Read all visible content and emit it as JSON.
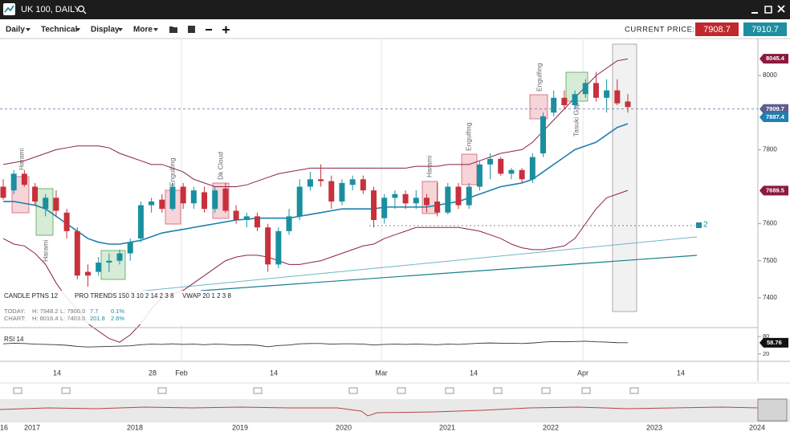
{
  "header": {
    "title": "UK 100, DAILY"
  },
  "toolbar": {
    "menus": [
      "Daily",
      "Technical",
      "Display",
      "More"
    ],
    "current_price_label": "CURRENT PRICE:",
    "bid": "7908.7",
    "ask": "7910.7"
  },
  "patterns": [
    "Harami",
    "Harami",
    "Engulfing",
    "Dk Cloud",
    "Harami",
    "Engulfing",
    "Engulfing",
    "Tasuki Gap"
  ],
  "drawing_label": "2",
  "legend": {
    "indicators": [
      "CANDLE PTNS 12",
      "PRO TRENDS 150 3 10 2 14 2 3 8",
      "VWAP 20 1 2 3 8"
    ],
    "today": [
      "TODAY:",
      "H: 7948.2",
      "L: 7900.0",
      "7.7",
      "0.1%"
    ],
    "chart": [
      "CHART:",
      "H: 8016.4",
      "L: 7403.0",
      "201.8",
      "2.6%"
    ]
  },
  "time_axis": [
    "14",
    "28",
    "Feb",
    "14",
    "Mar",
    "14",
    "Apr",
    "14"
  ],
  "navigator_years": [
    "16",
    "2017",
    "2018",
    "2019",
    "2020",
    "2021",
    "2022",
    "2023",
    "2024"
  ],
  "chart_data": {
    "type": "candlestick",
    "up_color": "#1a8fa0",
    "down_color": "#c8303c",
    "ylim": [
      7326,
      8100
    ],
    "yticks": [
      7400,
      7500,
      7600,
      7800,
      8000
    ],
    "candles": [
      [
        7700,
        7720,
        7665,
        7670
      ],
      [
        7690,
        7745,
        7680,
        7735
      ],
      [
        7735,
        7745,
        7700,
        7705
      ],
      [
        7700,
        7710,
        7650,
        7660
      ],
      [
        7640,
        7680,
        7620,
        7670
      ],
      [
        7670,
        7690,
        7620,
        7635
      ],
      [
        7630,
        7640,
        7560,
        7580
      ],
      [
        7580,
        7590,
        7450,
        7460
      ],
      [
        7470,
        7490,
        7430,
        7460
      ],
      [
        7470,
        7510,
        7460,
        7495
      ],
      [
        7495,
        7520,
        7470,
        7500
      ],
      [
        7500,
        7530,
        7490,
        7520
      ],
      [
        7520,
        7560,
        7500,
        7550
      ],
      [
        7560,
        7660,
        7550,
        7650
      ],
      [
        7650,
        7670,
        7630,
        7660
      ],
      [
        7665,
        7680,
        7630,
        7640
      ],
      [
        7640,
        7710,
        7635,
        7700
      ],
      [
        7700,
        7710,
        7640,
        7655
      ],
      [
        7655,
        7700,
        7640,
        7690
      ],
      [
        7685,
        7700,
        7630,
        7640
      ],
      [
        7640,
        7700,
        7630,
        7690
      ],
      [
        7695,
        7710,
        7630,
        7635
      ],
      [
        7635,
        7650,
        7600,
        7610
      ],
      [
        7610,
        7630,
        7590,
        7620
      ],
      [
        7620,
        7630,
        7580,
        7590
      ],
      [
        7590,
        7600,
        7470,
        7490
      ],
      [
        7490,
        7590,
        7480,
        7580
      ],
      [
        7580,
        7640,
        7570,
        7620
      ],
      [
        7620,
        7720,
        7610,
        7700
      ],
      [
        7700,
        7740,
        7690,
        7720
      ],
      [
        7720,
        7760,
        7700,
        7715
      ],
      [
        7715,
        7730,
        7640,
        7660
      ],
      [
        7660,
        7720,
        7650,
        7710
      ],
      [
        7705,
        7730,
        7690,
        7720
      ],
      [
        7720,
        7730,
        7680,
        7690
      ],
      [
        7690,
        7700,
        7590,
        7610
      ],
      [
        7615,
        7680,
        7600,
        7670
      ],
      [
        7670,
        7690,
        7640,
        7680
      ],
      [
        7680,
        7690,
        7640,
        7655
      ],
      [
        7655,
        7690,
        7640,
        7670
      ],
      [
        7670,
        7680,
        7630,
        7650
      ],
      [
        7660,
        7710,
        7620,
        7630
      ],
      [
        7630,
        7710,
        7625,
        7700
      ],
      [
        7700,
        7710,
        7640,
        7650
      ],
      [
        7650,
        7710,
        7640,
        7700
      ],
      [
        7700,
        7770,
        7690,
        7760
      ],
      [
        7760,
        7790,
        7720,
        7775
      ],
      [
        7775,
        7780,
        7730,
        7735
      ],
      [
        7735,
        7750,
        7720,
        7745
      ],
      [
        7745,
        7750,
        7710,
        7720
      ],
      [
        7720,
        7790,
        7710,
        7780
      ],
      [
        7790,
        7900,
        7780,
        7890
      ],
      [
        7900,
        7960,
        7890,
        7940
      ],
      [
        7940,
        7960,
        7910,
        7920
      ],
      [
        7920,
        7960,
        7910,
        7950
      ],
      [
        7950,
        7990,
        7940,
        7980
      ],
      [
        7980,
        8010,
        7930,
        7940
      ],
      [
        7940,
        7990,
        7900,
        7960
      ],
      [
        7960,
        7990,
        7920,
        7925
      ],
      [
        7930,
        7950,
        7900,
        7915
      ]
    ],
    "bands": [
      {
        "name": "upper",
        "color": "#8b2346",
        "values": [
          7760,
          7765,
          7770,
          7780,
          7790,
          7800,
          7805,
          7810,
          7810,
          7810,
          7805,
          7790,
          7780,
          7770,
          7760,
          7760,
          7750,
          7740,
          7720,
          7710,
          7700,
          7700,
          7700,
          7705,
          7715,
          7725,
          7735,
          7740,
          7745,
          7750,
          7750,
          7750,
          7750,
          7750,
          7750,
          7750,
          7750,
          7750,
          7750,
          7755,
          7755,
          7755,
          7760,
          7760,
          7760,
          7770,
          7780,
          7790,
          7795,
          7800,
          7820,
          7850,
          7880,
          7910,
          7940,
          7970,
          8000,
          8020,
          8040,
          8045
        ]
      },
      {
        "name": "middle",
        "color": "#1f7fb0",
        "values": [
          7660,
          7660,
          7655,
          7650,
          7640,
          7620,
          7600,
          7580,
          7560,
          7550,
          7545,
          7545,
          7550,
          7555,
          7565,
          7575,
          7580,
          7585,
          7590,
          7595,
          7600,
          7605,
          7610,
          7612,
          7615,
          7615,
          7615,
          7615,
          7620,
          7625,
          7630,
          7635,
          7640,
          7640,
          7640,
          7640,
          7645,
          7645,
          7645,
          7645,
          7645,
          7650,
          7655,
          7660,
          7670,
          7680,
          7690,
          7700,
          7705,
          7710,
          7720,
          7740,
          7760,
          7780,
          7800,
          7810,
          7820,
          7840,
          7860,
          7870
        ]
      },
      {
        "name": "lower",
        "color": "#8b2346",
        "values": [
          7560,
          7545,
          7540,
          7520,
          7490,
          7440,
          7400,
          7370,
          7330,
          7310,
          7290,
          7280,
          7300,
          7330,
          7370,
          7400,
          7410,
          7420,
          7440,
          7460,
          7480,
          7500,
          7510,
          7515,
          7515,
          7510,
          7500,
          7490,
          7490,
          7495,
          7500,
          7510,
          7520,
          7530,
          7540,
          7545,
          7560,
          7570,
          7580,
          7590,
          7590,
          7590,
          7590,
          7590,
          7585,
          7580,
          7570,
          7560,
          7545,
          7535,
          7530,
          7530,
          7535,
          7540,
          7560,
          7600,
          7640,
          7670,
          7680,
          7690
        ]
      }
    ],
    "current_price": 7909.7,
    "price_tags": [
      {
        "value": 8045.4,
        "color": "#8b1a3c"
      },
      {
        "value": 7909.7,
        "color": "#5d5d91"
      },
      {
        "value": 7887.4,
        "color": "#1f7fb0"
      },
      {
        "value": 7689.5,
        "color": "#8b1a3c"
      }
    ],
    "rsi": {
      "label": "RSI 14",
      "ylim": [
        0,
        100
      ],
      "yticks": [
        20,
        80
      ],
      "last": 58.76,
      "values": [
        55,
        57,
        56,
        54,
        53,
        52,
        50,
        46,
        44,
        45,
        46,
        47,
        48,
        52,
        54,
        53,
        55,
        53,
        54,
        52,
        54,
        53,
        51,
        52,
        50,
        45,
        49,
        51,
        55,
        56,
        56,
        54,
        55,
        55,
        54,
        51,
        53,
        54,
        53,
        54,
        53,
        52,
        54,
        53,
        55,
        57,
        58,
        57,
        57,
        56,
        58,
        61,
        63,
        62,
        63,
        64,
        62,
        61,
        59,
        58.76
      ]
    }
  }
}
